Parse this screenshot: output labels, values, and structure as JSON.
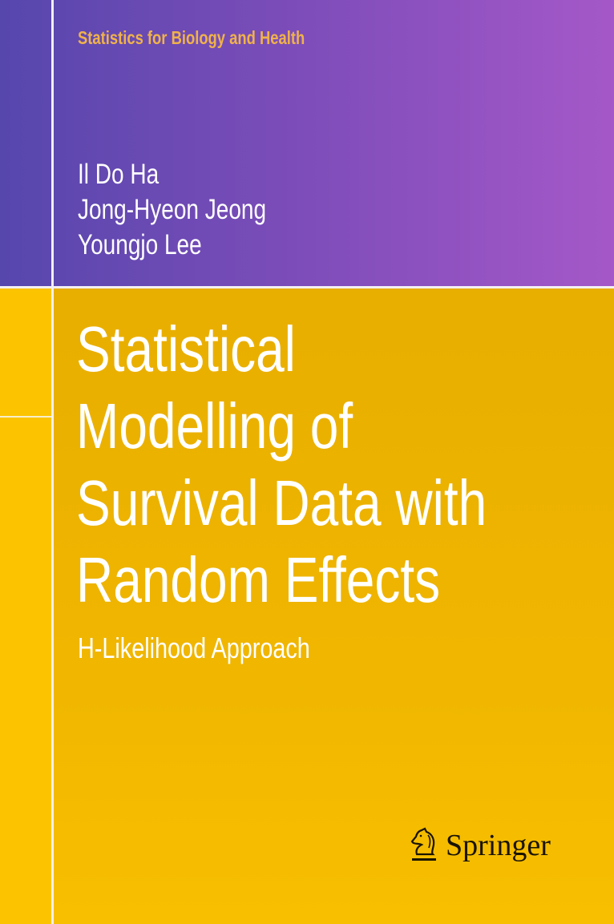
{
  "series": "Statistics for Biology and Health",
  "authors": [
    "Il Do Ha",
    "Jong-Hyeon Jeong",
    "Youngjo Lee"
  ],
  "title_lines": [
    "Statistical",
    "Modelling of",
    "Survival Data with",
    "Random Effects"
  ],
  "subtitle": "H-Likelihood Approach",
  "publisher": {
    "name": "Springer",
    "logo_icon": "knight-horse-icon"
  },
  "colors": {
    "purple_left": "#5647ad",
    "purple_right": "#a558c8",
    "yellow": "#eab000",
    "series_text": "#f0b24a"
  }
}
